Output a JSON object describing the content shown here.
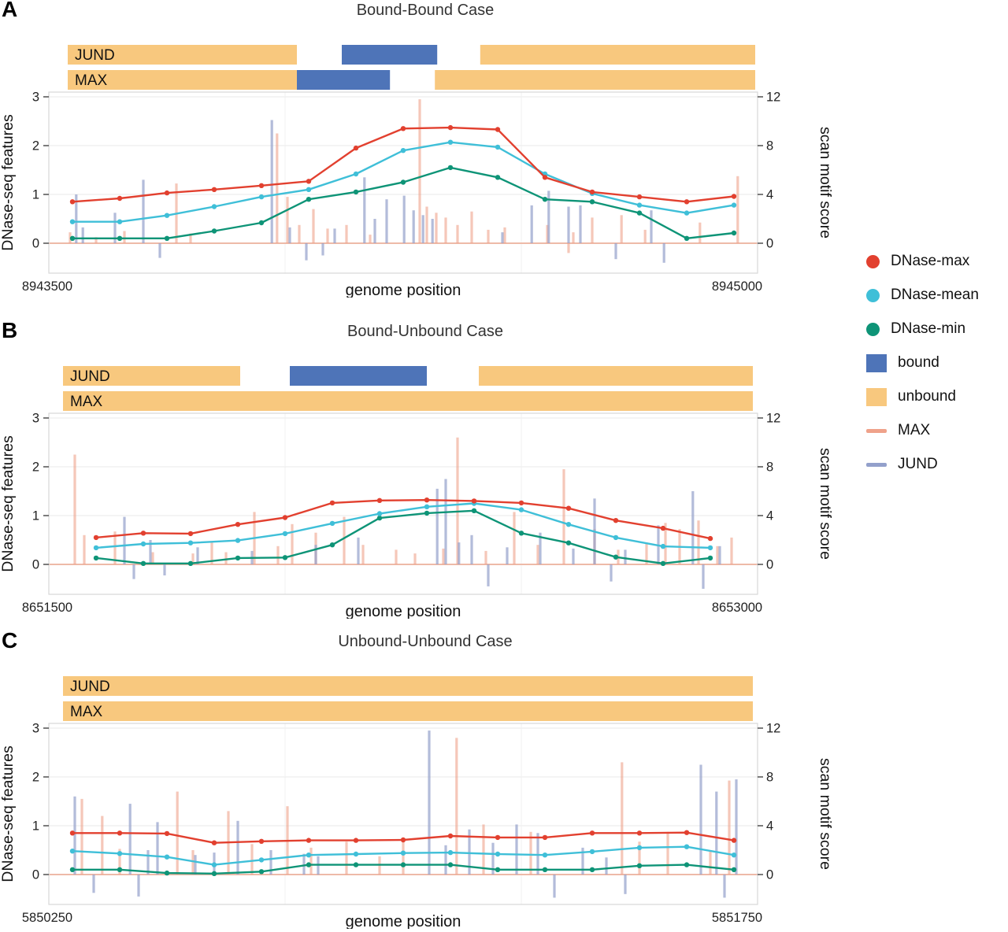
{
  "colors": {
    "dnase_max": "#E2402F",
    "dnase_mean": "#3FBFD8",
    "dnase_min": "#0E9477",
    "bound": "#4E74B8",
    "unbound": "#F8C87E",
    "max_motif": "#EFA28A",
    "jund_motif": "#93A0CB"
  },
  "legend": {
    "items": [
      {
        "label": "DNase-max",
        "type": "dot",
        "color": "#E2402F"
      },
      {
        "label": "DNase-mean",
        "type": "dot",
        "color": "#3FBFD8"
      },
      {
        "label": "DNase-min",
        "type": "dot",
        "color": "#0E9477"
      },
      {
        "label": "bound",
        "type": "square",
        "color": "#4E74B8"
      },
      {
        "label": "unbound",
        "type": "square",
        "color": "#F8C87E"
      },
      {
        "label": "MAX",
        "type": "line",
        "color": "#EFA28A"
      },
      {
        "label": "JUND",
        "type": "line",
        "color": "#93A0CB"
      }
    ]
  },
  "chart_data": [
    {
      "panel_label": "A",
      "type": "line",
      "title": "Bound-Bound Case",
      "xlabel": "genome position",
      "ylabel_left": "DNase-seq features",
      "ylabel_right": "scan motif score",
      "x_start": 8943500,
      "x_end": 8945000,
      "ylim_left": [
        -0.61,
        3.1
      ],
      "yticks_left": [
        0,
        1,
        2,
        3
      ],
      "yticks_right": [
        0,
        4,
        8,
        12
      ],
      "tracks": {
        "JUND": [
          {
            "state": "unbound",
            "start": 8943540,
            "end": 8944025
          },
          {
            "state": "bound",
            "start": 8944120,
            "end": 8944322
          },
          {
            "state": "unbound",
            "start": 8944413,
            "end": 8944995
          }
        ],
        "MAX": [
          {
            "state": "unbound",
            "start": 8943540,
            "end": 8944025
          },
          {
            "state": "bound",
            "start": 8944025,
            "end": 8944222
          },
          {
            "state": "unbound",
            "start": 8944317,
            "end": 8944995
          }
        ]
      },
      "line_x": [
        8943550,
        8943650,
        8943750,
        8943850,
        8943950,
        8944050,
        8944150,
        8944250,
        8944350,
        8944450,
        8944550,
        8944650,
        8944750,
        8944850,
        8944950
      ],
      "series": [
        {
          "name": "DNase-max",
          "values": [
            0.85,
            0.92,
            1.03,
            1.1,
            1.18,
            1.27,
            1.95,
            2.35,
            2.37,
            2.33,
            1.35,
            1.05,
            0.95,
            0.85,
            0.96
          ]
        },
        {
          "name": "DNase-mean",
          "values": [
            0.44,
            0.44,
            0.57,
            0.75,
            0.95,
            1.1,
            1.42,
            1.9,
            2.07,
            1.97,
            1.42,
            1.02,
            0.78,
            0.62,
            0.78
          ]
        },
        {
          "name": "DNase-min",
          "values": [
            0.1,
            0.1,
            0.1,
            0.25,
            0.42,
            0.9,
            1.05,
            1.25,
            1.55,
            1.35,
            0.9,
            0.85,
            0.62,
            0.1,
            0.21
          ]
        }
      ],
      "motifs": {
        "MAX": [
          [
            8943545,
            0.9
          ],
          [
            8943600,
            0.5
          ],
          [
            8943660,
            1.0
          ],
          [
            8943770,
            4.9
          ],
          [
            8943800,
            0.8
          ],
          [
            8943983,
            9.0
          ],
          [
            8944005,
            3.8
          ],
          [
            8944030,
            1.5
          ],
          [
            8944060,
            2.8
          ],
          [
            8944090,
            1.2
          ],
          [
            8944130,
            1.5
          ],
          [
            8944180,
            0.7
          ],
          [
            8944285,
            11.8
          ],
          [
            8944300,
            3.0
          ],
          [
            8944320,
            2.5
          ],
          [
            8944340,
            2.1
          ],
          [
            8944365,
            1.5
          ],
          [
            8944395,
            2.6
          ],
          [
            8944430,
            1.1
          ],
          [
            8944465,
            1.3
          ],
          [
            8944555,
            1.5
          ],
          [
            8944600,
            -0.8
          ],
          [
            8944610,
            0.9
          ],
          [
            8944650,
            2.1
          ],
          [
            8944712,
            2.3
          ],
          [
            8944762,
            1.1
          ],
          [
            8944878,
            1.7
          ],
          [
            8944958,
            5.5
          ]
        ],
        "JUND": [
          [
            8943558,
            4.0
          ],
          [
            8943572,
            1.3
          ],
          [
            8943640,
            2.5
          ],
          [
            8943700,
            5.2
          ],
          [
            8943735,
            -1.2
          ],
          [
            8943972,
            10.1
          ],
          [
            8944010,
            1.3
          ],
          [
            8944045,
            -1.4
          ],
          [
            8944080,
            -1.0
          ],
          [
            8944105,
            1.2
          ],
          [
            8944168,
            5.4
          ],
          [
            8944190,
            2.0
          ],
          [
            8944215,
            3.6
          ],
          [
            8944252,
            3.9
          ],
          [
            8944272,
            2.7
          ],
          [
            8944292,
            2.3
          ],
          [
            8944312,
            2.0
          ],
          [
            8944460,
            0.9
          ],
          [
            8944522,
            3.1
          ],
          [
            8944558,
            4.3
          ],
          [
            8944600,
            3.0
          ],
          [
            8944625,
            3.1
          ],
          [
            8944700,
            -1.3
          ],
          [
            8944775,
            2.7
          ],
          [
            8944802,
            -1.6
          ]
        ]
      }
    },
    {
      "panel_label": "B",
      "type": "line",
      "title": "Bound-Unbound Case",
      "xlabel": "genome position",
      "ylabel_left": "DNase-seq features",
      "ylabel_right": "scan motif score",
      "x_start": 8651500,
      "x_end": 8653000,
      "ylim_left": [
        -0.61,
        3.1
      ],
      "yticks_left": [
        0,
        1,
        2,
        3
      ],
      "yticks_right": [
        0,
        4,
        8,
        12
      ],
      "tracks": {
        "JUND": [
          {
            "state": "unbound",
            "start": 8651530,
            "end": 8651905
          },
          {
            "state": "bound",
            "start": 8652010,
            "end": 8652300
          },
          {
            "state": "unbound",
            "start": 8652410,
            "end": 8652990
          }
        ],
        "MAX": [
          {
            "state": "unbound",
            "start": 8651530,
            "end": 8652990
          }
        ]
      },
      "line_x": [
        8651600,
        8651700,
        8651800,
        8651900,
        8652000,
        8652100,
        8652200,
        8652300,
        8652400,
        8652500,
        8652600,
        8652700,
        8652800,
        8652900
      ],
      "series": [
        {
          "name": "DNase-max",
          "values": [
            0.55,
            0.64,
            0.63,
            0.82,
            0.96,
            1.26,
            1.31,
            1.32,
            1.3,
            1.26,
            1.15,
            0.9,
            0.74,
            0.53
          ]
        },
        {
          "name": "DNase-mean",
          "values": [
            0.34,
            0.42,
            0.44,
            0.49,
            0.63,
            0.84,
            1.04,
            1.18,
            1.25,
            1.12,
            0.82,
            0.55,
            0.37,
            0.34
          ]
        },
        {
          "name": "DNase-min",
          "values": [
            0.13,
            0.02,
            0.02,
            0.13,
            0.14,
            0.4,
            0.95,
            1.05,
            1.1,
            0.64,
            0.44,
            0.15,
            0.02,
            0.13
          ]
        }
      ],
      "motifs": {
        "MAX": [
          [
            8651555,
            9.0
          ],
          [
            8651575,
            2.4
          ],
          [
            8651640,
            2.7
          ],
          [
            8651720,
            1.0
          ],
          [
            8651805,
            0.9
          ],
          [
            8651845,
            1.9
          ],
          [
            8651875,
            1.0
          ],
          [
            8651935,
            4.3
          ],
          [
            8651985,
            1.5
          ],
          [
            8652015,
            3.3
          ],
          [
            8652065,
            2.6
          ],
          [
            8652125,
            3.9
          ],
          [
            8652165,
            1.6
          ],
          [
            8652235,
            1.2
          ],
          [
            8652275,
            0.9
          ],
          [
            8652335,
            1.3
          ],
          [
            8652365,
            10.4
          ],
          [
            8652425,
            1.1
          ],
          [
            8652485,
            4.3
          ],
          [
            8652535,
            1.6
          ],
          [
            8652590,
            7.8
          ],
          [
            8652655,
            2.9
          ],
          [
            8652705,
            1.2
          ],
          [
            8652765,
            1.8
          ],
          [
            8652805,
            3.4
          ],
          [
            8652835,
            2.9
          ],
          [
            8652875,
            3.6
          ],
          [
            8652915,
            1.5
          ],
          [
            8652945,
            2.2
          ]
        ],
        "JUND": [
          [
            8651660,
            3.9
          ],
          [
            8651680,
            -1.2
          ],
          [
            8651715,
            2.0
          ],
          [
            8651745,
            -0.9
          ],
          [
            8651815,
            1.4
          ],
          [
            8651930,
            1.1
          ],
          [
            8652065,
            1.6
          ],
          [
            8652155,
            2.2
          ],
          [
            8652322,
            6.2
          ],
          [
            8652340,
            7.0
          ],
          [
            8652368,
            1.8
          ],
          [
            8652395,
            2.4
          ],
          [
            8652430,
            -1.8
          ],
          [
            8652470,
            1.4
          ],
          [
            8652540,
            2.6
          ],
          [
            8652610,
            1.3
          ],
          [
            8652655,
            5.4
          ],
          [
            8652690,
            -1.4
          ],
          [
            8652720,
            1.2
          ],
          [
            8652790,
            3.2
          ],
          [
            8652863,
            6.0
          ],
          [
            8652885,
            -2.0
          ],
          [
            8652920,
            1.5
          ]
        ]
      }
    },
    {
      "panel_label": "C",
      "type": "line",
      "title": "Unbound-Unbound Case",
      "xlabel": "genome position",
      "ylabel_left": "DNase-seq features",
      "ylabel_right": "scan motif score",
      "x_start": 5850250,
      "x_end": 5851750,
      "ylim_left": [
        -0.61,
        3.1
      ],
      "yticks_left": [
        0,
        1,
        2,
        3
      ],
      "yticks_right": [
        0,
        4,
        8,
        12
      ],
      "tracks": {
        "JUND": [
          {
            "state": "unbound",
            "start": 5850280,
            "end": 5851740
          }
        ],
        "MAX": [
          {
            "state": "unbound",
            "start": 5850280,
            "end": 5851740
          }
        ]
      },
      "line_x": [
        5850300,
        5850400,
        5850500,
        5850600,
        5850700,
        5850800,
        5850900,
        5851000,
        5851100,
        5851200,
        5851300,
        5851400,
        5851500,
        5851600,
        5851700
      ],
      "series": [
        {
          "name": "DNase-max",
          "values": [
            0.85,
            0.85,
            0.84,
            0.65,
            0.68,
            0.7,
            0.7,
            0.71,
            0.79,
            0.76,
            0.76,
            0.85,
            0.85,
            0.86,
            0.7
          ]
        },
        {
          "name": "DNase-mean",
          "values": [
            0.48,
            0.43,
            0.36,
            0.2,
            0.3,
            0.4,
            0.42,
            0.44,
            0.45,
            0.42,
            0.4,
            0.47,
            0.55,
            0.57,
            0.4
          ]
        },
        {
          "name": "DNase-min",
          "values": [
            0.1,
            0.1,
            0.03,
            0.02,
            0.06,
            0.2,
            0.2,
            0.2,
            0.2,
            0.1,
            0.1,
            0.1,
            0.18,
            0.2,
            0.1
          ]
        }
      ],
      "motifs": {
        "MAX": [
          [
            5850320,
            6.2
          ],
          [
            5850363,
            4.8
          ],
          [
            5850400,
            2.1
          ],
          [
            5850522,
            6.8
          ],
          [
            5850555,
            2.0
          ],
          [
            5850630,
            5.2
          ],
          [
            5850680,
            2.5
          ],
          [
            5850755,
            5.6
          ],
          [
            5850805,
            2.2
          ],
          [
            5850880,
            2.7
          ],
          [
            5850950,
            1.5
          ],
          [
            5851000,
            2.9
          ],
          [
            5851113,
            11.2
          ],
          [
            5851170,
            4.1
          ],
          [
            5851270,
            3.5
          ],
          [
            5851463,
            9.2
          ],
          [
            5851500,
            2.7
          ],
          [
            5851560,
            3.5
          ],
          [
            5851650,
            2.0
          ],
          [
            5851690,
            7.7
          ]
        ],
        "JUND": [
          [
            5850305,
            6.4
          ],
          [
            5850345,
            -1.5
          ],
          [
            5850422,
            5.8
          ],
          [
            5850440,
            -1.8
          ],
          [
            5850460,
            2.0
          ],
          [
            5850480,
            4.3
          ],
          [
            5850560,
            1.6
          ],
          [
            5850600,
            1.8
          ],
          [
            5850650,
            4.4
          ],
          [
            5850720,
            2.0
          ],
          [
            5850790,
            1.7
          ],
          [
            5850820,
            1.5
          ],
          [
            5851055,
            11.8
          ],
          [
            5851090,
            2.4
          ],
          [
            5851140,
            3.7
          ],
          [
            5851190,
            2.6
          ],
          [
            5851240,
            4.1
          ],
          [
            5851285,
            3.4
          ],
          [
            5851320,
            -1.9
          ],
          [
            5851380,
            2.2
          ],
          [
            5851430,
            1.4
          ],
          [
            5851470,
            -1.6
          ],
          [
            5851630,
            9.0
          ],
          [
            5851663,
            6.8
          ],
          [
            5851680,
            -1.9
          ],
          [
            5851705,
            7.8
          ]
        ]
      }
    }
  ]
}
